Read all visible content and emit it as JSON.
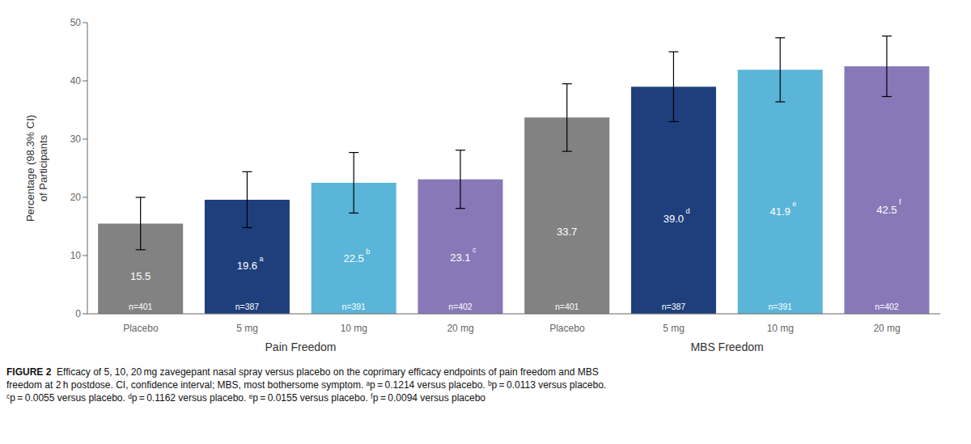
{
  "chart_data": {
    "type": "bar",
    "ylabel": "Percentage (98.3% CI)\nof Participants",
    "ylim": [
      0,
      50
    ],
    "yticks": [
      0,
      10,
      20,
      30,
      40,
      50
    ],
    "data_labels": true,
    "grid": false,
    "groups": [
      {
        "label": "Pain Freedom",
        "categories": [
          "Placebo",
          "5 mg",
          "10 mg",
          "20 mg"
        ],
        "values": [
          15.5,
          19.6,
          22.5,
          23.1
        ],
        "value_labels": [
          "15.5",
          "19.6",
          "22.5",
          "23.1"
        ],
        "colors": [
          "#828282",
          "#1e3f7b",
          "#5ab5d8",
          "#8878b8"
        ],
        "error_low": [
          4.5,
          4.8,
          5.2,
          5.0
        ],
        "error_high": [
          4.5,
          4.8,
          5.2,
          5.0
        ],
        "superscripts": [
          null,
          "a",
          "b",
          "c"
        ],
        "n_labels": [
          "n=401",
          "n=387",
          "n=391",
          "n=402"
        ]
      },
      {
        "label": "MBS Freedom",
        "categories": [
          "Placebo",
          "5 mg",
          "10 mg",
          "20 mg"
        ],
        "values": [
          33.7,
          39.0,
          41.9,
          42.5
        ],
        "value_labels": [
          "33.7",
          "39.0",
          "41.9",
          "42.5"
        ],
        "colors": [
          "#828282",
          "#1e3f7b",
          "#5ab5d8",
          "#8878b8"
        ],
        "error_low": [
          5.8,
          6.0,
          5.5,
          5.2
        ],
        "error_high": [
          5.8,
          6.0,
          5.5,
          5.2
        ],
        "superscripts": [
          null,
          "d",
          "e",
          "f"
        ],
        "n_labels": [
          "n=401",
          "n=387",
          "n=391",
          "n=402"
        ]
      }
    ],
    "caption_title": "FIGURE 2",
    "caption": "  Efficacy of 5, 10, 20 mg zavegepant nasal spray versus placebo on the coprimary efficacy endpoints of pain freedom and MBS\nfreedom at 2 h postdose. CI, confidence interval; MBS, most bothersome symptom. ᵃp = 0.1214 versus placebo. ᵇp = 0.0113 versus placebo.\nᶜp = 0.0055 versus placebo. ᵈp = 0.1162 versus placebo. ᵉp = 0.0155 versus placebo. ᶠp = 0.0094 versus placebo"
  }
}
